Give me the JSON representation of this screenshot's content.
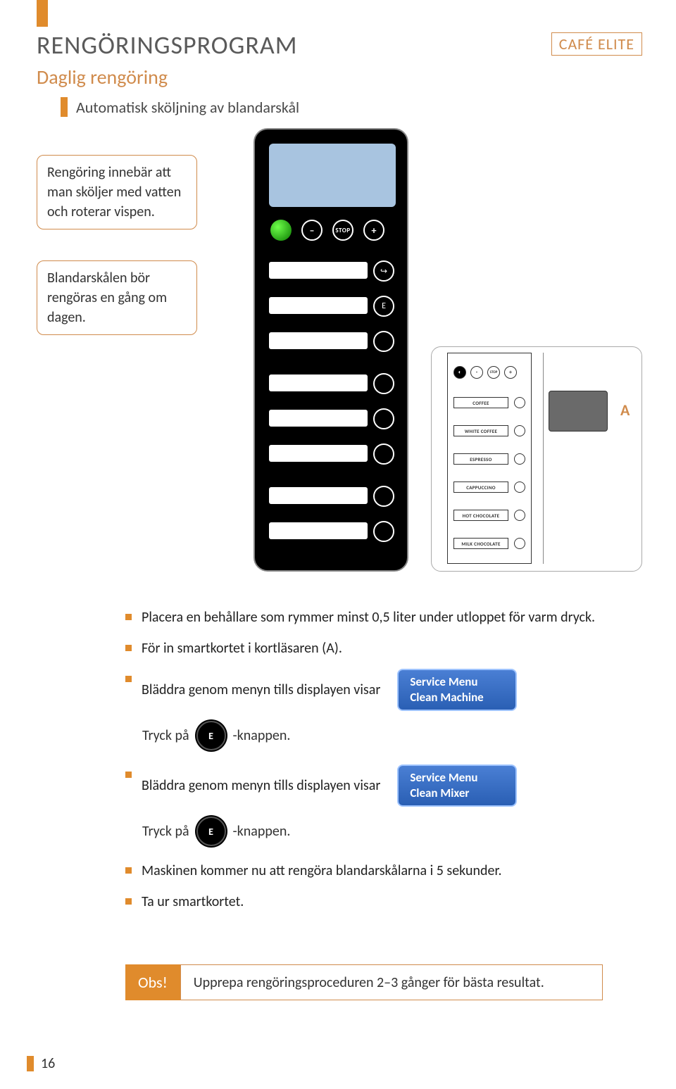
{
  "colors": {
    "accent": "#e08b2c",
    "accentLight": "#d08b4c",
    "badgeTop": "#4a7fd4",
    "badgeBottom": "#2a5fb4",
    "display": "#a8c4e0"
  },
  "header": {
    "title": "RENGÖRINGSPROGRAM",
    "brand": "CAFÉ ELITE",
    "subtitle": "Daglig rengöring",
    "section": "Automatisk sköljning av blandarskål"
  },
  "infoBoxes": {
    "box1": "Rengöring innebär att man sköljer med vatten och roterar vispen.",
    "box2": "Blandarskålen bör rengöras en gång om dagen."
  },
  "device": {
    "stop": "STOP",
    "minus": "–",
    "plus": "+",
    "e": "E",
    "arrow": "↪"
  },
  "machine": {
    "stop": "STOP",
    "minus": "-",
    "plus": "+",
    "aLabel": "A",
    "labels": [
      "COFFEE",
      "WHITE COFFEE",
      "ESPRESSO",
      "CAPPUCCINO",
      "HOT CHOCOLATE",
      "MILK CHOCOLATE"
    ]
  },
  "bullets": {
    "b1": "Placera en behållare som rymmer minst 0,5 liter under utloppet för varm dryck.",
    "b2": "För in smartkortet i kortläsaren (A).",
    "b3": "Bläddra genom menyn tills displayen visar",
    "b4": "Bläddra genom menyn tills displayen visar",
    "b5": "Maskinen kommer nu att rengöra blandarskålarna i 5 sekunder.",
    "b6": "Ta ur smartkortet."
  },
  "press": {
    "pre": "Tryck på",
    "post": "-knappen.",
    "e": "E"
  },
  "badges": {
    "menu1_l1": "Service Menu",
    "menu1_l2": "Clean Machine",
    "menu2_l1": "Service Menu",
    "menu2_l2": "Clean Mixer"
  },
  "obs": {
    "tag": "Obs!",
    "text": "Upprepa rengöringsproceduren 2–3 gånger för bästa resultat."
  },
  "pageNumber": "16"
}
